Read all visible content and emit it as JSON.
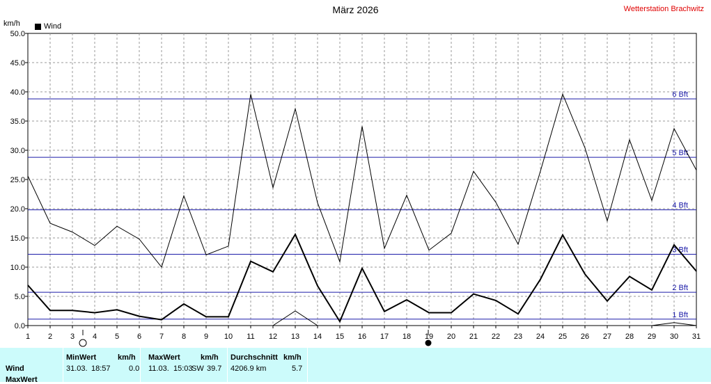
{
  "header": {
    "title": "März 2026",
    "station": "Wetterstation Brachwitz",
    "unit": "km/h"
  },
  "legend": {
    "label": "Wind",
    "color": "#000000"
  },
  "chart_data": {
    "type": "line",
    "ylim": [
      0,
      50
    ],
    "yticks": [
      "0.0",
      "5.0",
      "10.0",
      "15.0",
      "20.0",
      "25.0",
      "30.0",
      "35.0",
      "40.0",
      "45.0",
      "50.0"
    ],
    "x": [
      1,
      2,
      3,
      4,
      5,
      6,
      7,
      8,
      9,
      10,
      11,
      12,
      13,
      14,
      15,
      16,
      17,
      18,
      19,
      20,
      21,
      22,
      23,
      24,
      25,
      26,
      27,
      28,
      29,
      30,
      31
    ],
    "xticks": [
      "1",
      "2",
      "3",
      "4",
      "5",
      "6",
      "7",
      "8",
      "9",
      "10",
      "11",
      "12",
      "13",
      "14",
      "15",
      "16",
      "17",
      "18",
      "19",
      "20",
      "21",
      "22",
      "23",
      "24",
      "25",
      "26",
      "27",
      "28",
      "29",
      "30",
      "31"
    ],
    "grid": true,
    "series": [
      {
        "name": "Wind",
        "color": "#000000",
        "width": 2,
        "values": [
          6.9,
          2.6,
          2.6,
          2.2,
          2.7,
          1.6,
          1.0,
          3.7,
          1.5,
          1.5,
          11.0,
          9.2,
          15.6,
          6.8,
          0.7,
          9.8,
          2.4,
          4.4,
          2.2,
          2.2,
          5.4,
          4.3,
          2.0,
          7.9,
          15.5,
          8.8,
          4.2,
          8.4,
          6.1,
          13.8,
          9.3
        ]
      },
      {
        "color": "#000000",
        "width": 1,
        "values": [
          25.6,
          17.5,
          16.0,
          13.7,
          17.0,
          14.8,
          10.0,
          22.2,
          12.1,
          13.6,
          39.6,
          23.6,
          37.1,
          21.0,
          10.9,
          34.1,
          13.2,
          22.3,
          12.9,
          15.8,
          26.4,
          21.1,
          13.9,
          26.4,
          39.6,
          30.4,
          17.9,
          31.8,
          21.4,
          33.7,
          26.6
        ]
      },
      {
        "color": "#000000",
        "width": 1,
        "values": [
          null,
          null,
          null,
          null,
          null,
          null,
          null,
          null,
          null,
          null,
          null,
          0.0,
          2.5,
          0.0,
          null,
          null,
          null,
          null,
          null,
          null,
          null,
          null,
          null,
          null,
          null,
          null,
          null,
          null,
          0.0,
          0.5,
          0.0
        ]
      }
    ],
    "beaufort": [
      {
        "label": "1 Bft",
        "value": 1.1
      },
      {
        "label": "2 Bft",
        "value": 5.7
      },
      {
        "label": "3 Bft",
        "value": 12.2
      },
      {
        "label": "4 Bft",
        "value": 19.8
      },
      {
        "label": "5 Bft",
        "value": 28.8
      },
      {
        "label": "6 Bft",
        "value": 38.8
      }
    ],
    "beaufort_color": "#1a1aa8",
    "moon_phases": [
      {
        "day": 3.5,
        "phase": "full"
      },
      {
        "day": 19,
        "phase": "new"
      }
    ]
  },
  "stats": {
    "row_labels": [
      "Wind",
      "MaxWert"
    ],
    "min": {
      "header": "MinWert",
      "unit": "km/h",
      "date": "31.03.",
      "time": "18:57",
      "value": "0.0"
    },
    "max": {
      "header": "MaxWert",
      "unit": "km/h",
      "date": "11.03.",
      "time": "15:03",
      "dir": "SW",
      "value": "39.7"
    },
    "avg": {
      "header": "Durchschnitt",
      "unit": "km/h",
      "distance": "4206.9 km",
      "value": "5.7"
    }
  }
}
